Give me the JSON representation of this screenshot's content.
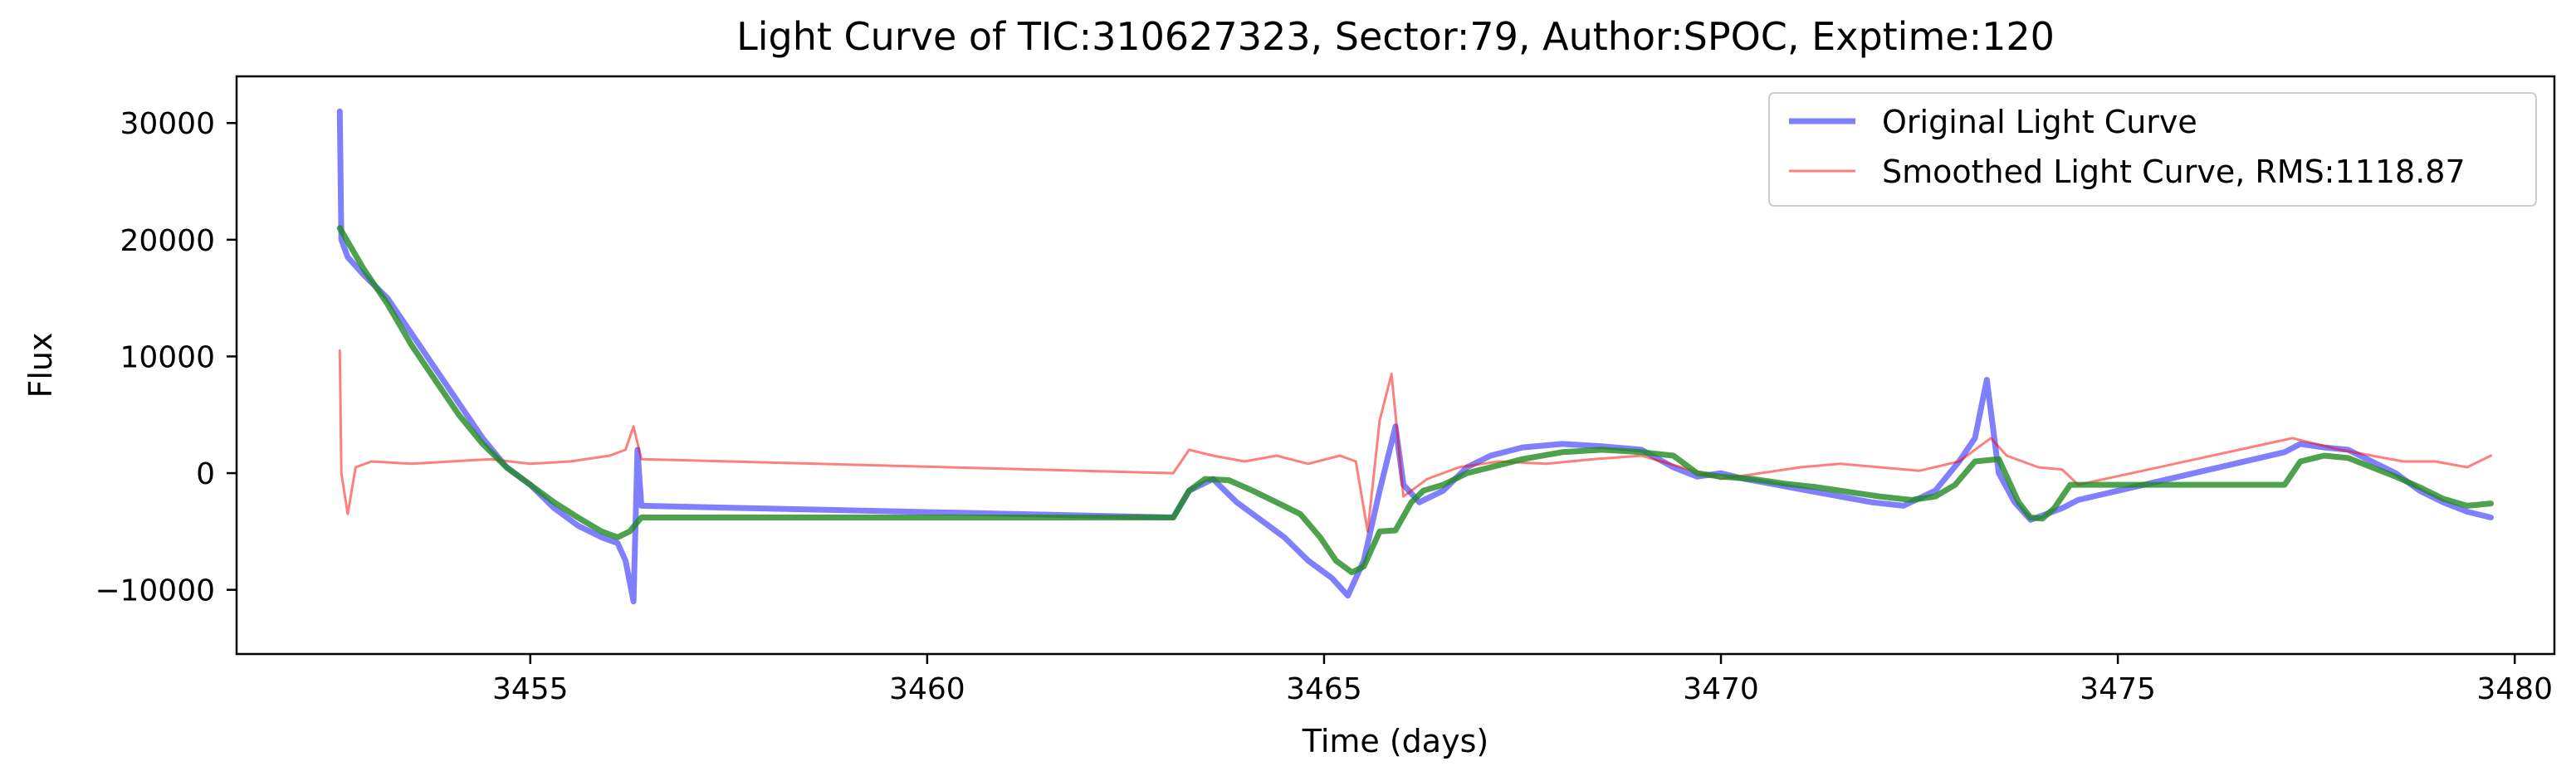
{
  "chart_data": {
    "type": "line",
    "title": "Light Curve of TIC:310627323, Sector:79, Author:SPOC, Exptime:120",
    "xlabel": "Time (days)",
    "ylabel": "Flux",
    "xlim": [
      3451.3,
      3480.5
    ],
    "ylim": [
      -15500,
      34000
    ],
    "xticks": [
      3455,
      3460,
      3465,
      3470,
      3475,
      3480
    ],
    "yticks": [
      -10000,
      0,
      10000,
      20000,
      30000
    ],
    "grid": false,
    "legend_position": "top-right",
    "colors": {
      "original": "#0000ff",
      "smoothed": "#ff0000",
      "trend": "#228b22"
    },
    "series": [
      {
        "name": "Original Light Curve",
        "x": [
          3452.6,
          3452.62,
          3452.7,
          3452.9,
          3453.2,
          3453.5,
          3453.8,
          3454.1,
          3454.4,
          3454.7,
          3455.0,
          3455.3,
          3455.6,
          3455.9,
          3456.1,
          3456.2,
          3456.3,
          3456.35,
          3456.4,
          3463.1,
          3463.3,
          3463.6,
          3463.9,
          3464.2,
          3464.5,
          3464.8,
          3465.1,
          3465.3,
          3465.5,
          3465.7,
          3465.9,
          3466.0,
          3466.2,
          3466.5,
          3466.8,
          3467.1,
          3467.5,
          3468.0,
          3468.5,
          3469.0,
          3469.4,
          3469.7,
          3470.0,
          3470.3,
          3470.7,
          3471.1,
          3471.5,
          3471.9,
          3472.3,
          3472.7,
          3473.0,
          3473.2,
          3473.35,
          3473.5,
          3473.7,
          3473.9,
          3474.1,
          3474.3,
          3474.5,
          3477.1,
          3477.3,
          3477.6,
          3477.9,
          3478.2,
          3478.5,
          3478.8,
          3479.1,
          3479.4,
          3479.7
        ],
        "y": [
          31000,
          20000,
          18500,
          17000,
          15000,
          12000,
          9000,
          6000,
          3000,
          500,
          -1000,
          -3000,
          -4500,
          -5500,
          -6000,
          -7500,
          -11000,
          2000,
          -2800,
          -3800,
          -1500,
          -500,
          -2500,
          -4000,
          -5500,
          -7500,
          -9000,
          -10500,
          -7500,
          -1500,
          4000,
          -1000,
          -2500,
          -1500,
          500,
          1500,
          2200,
          2500,
          2300,
          2000,
          500,
          -300,
          0,
          -500,
          -1000,
          -1500,
          -2000,
          -2500,
          -2800,
          -1500,
          1000,
          3000,
          8000,
          0,
          -2500,
          -4000,
          -3500,
          -3000,
          -2300,
          1800,
          2500,
          2200,
          2000,
          1000,
          0,
          -1500,
          -2500,
          -3300,
          -3800
        ]
      },
      {
        "name": "Smoothed Light Curve, RMS:1118.87",
        "x": [
          3452.6,
          3452.62,
          3452.7,
          3452.8,
          3453.0,
          3453.5,
          3454.0,
          3454.5,
          3455.0,
          3455.5,
          3456.0,
          3456.2,
          3456.3,
          3456.4,
          3463.1,
          3463.3,
          3463.6,
          3464.0,
          3464.4,
          3464.8,
          3465.2,
          3465.4,
          3465.55,
          3465.7,
          3465.85,
          3466.0,
          3466.3,
          3466.7,
          3467.2,
          3467.8,
          3468.4,
          3469.0,
          3469.5,
          3470.0,
          3470.5,
          3471.0,
          3471.5,
          3472.0,
          3472.5,
          3473.0,
          3473.2,
          3473.4,
          3473.6,
          3473.8,
          3474.0,
          3474.3,
          3474.5,
          3477.2,
          3477.5,
          3477.8,
          3478.2,
          3478.6,
          3479.0,
          3479.4,
          3479.7
        ],
        "y": [
          10500,
          0,
          -3500,
          500,
          1000,
          800,
          1000,
          1200,
          800,
          1000,
          1500,
          2000,
          4000,
          1200,
          0,
          2000,
          1500,
          1000,
          1500,
          800,
          1500,
          1000,
          -5000,
          4500,
          8500,
          -2000,
          -500,
          500,
          1000,
          800,
          1200,
          1500,
          500,
          -500,
          0,
          500,
          800,
          500,
          200,
          1000,
          2000,
          3000,
          1500,
          1000,
          500,
          300,
          -1000,
          3000,
          2500,
          2000,
          1500,
          1000,
          1000,
          500,
          1500
        ]
      },
      {
        "name": "",
        "x": [
          3452.6,
          3452.9,
          3453.2,
          3453.5,
          3453.8,
          3454.1,
          3454.4,
          3454.7,
          3455.0,
          3455.3,
          3455.6,
          3455.9,
          3456.1,
          3456.25,
          3456.4,
          3463.1,
          3463.3,
          3463.5,
          3463.8,
          3464.1,
          3464.4,
          3464.7,
          3464.95,
          3465.15,
          3465.35,
          3465.5,
          3465.7,
          3465.9,
          3466.1,
          3466.25,
          3466.5,
          3466.8,
          3467.1,
          3467.5,
          3468.0,
          3468.5,
          3469.0,
          3469.4,
          3469.7,
          3470.0,
          3470.4,
          3470.8,
          3471.2,
          3471.6,
          3472.0,
          3472.4,
          3472.7,
          3472.95,
          3473.2,
          3473.5,
          3473.75,
          3473.9,
          3474.05,
          3474.2,
          3474.4,
          3477.1,
          3477.3,
          3477.6,
          3477.9,
          3478.2,
          3478.5,
          3478.8,
          3479.1,
          3479.4,
          3479.7
        ],
        "y": [
          21000,
          17500,
          14500,
          11000,
          8000,
          5000,
          2500,
          500,
          -1000,
          -2500,
          -3800,
          -5000,
          -5500,
          -5000,
          -3800,
          -3800,
          -1500,
          -500,
          -600,
          -1500,
          -2500,
          -3500,
          -5500,
          -7500,
          -8500,
          -8000,
          -5000,
          -4900,
          -2500,
          -1500,
          -1000,
          0,
          500,
          1200,
          1800,
          2000,
          1800,
          1500,
          0,
          -300,
          -500,
          -900,
          -1200,
          -1600,
          -2000,
          -2300,
          -2000,
          -1000,
          1000,
          1200,
          -2500,
          -3800,
          -3900,
          -3000,
          -1000,
          -1000,
          1000,
          1500,
          1300,
          500,
          -300,
          -1200,
          -2200,
          -2800,
          -2600
        ]
      }
    ]
  }
}
